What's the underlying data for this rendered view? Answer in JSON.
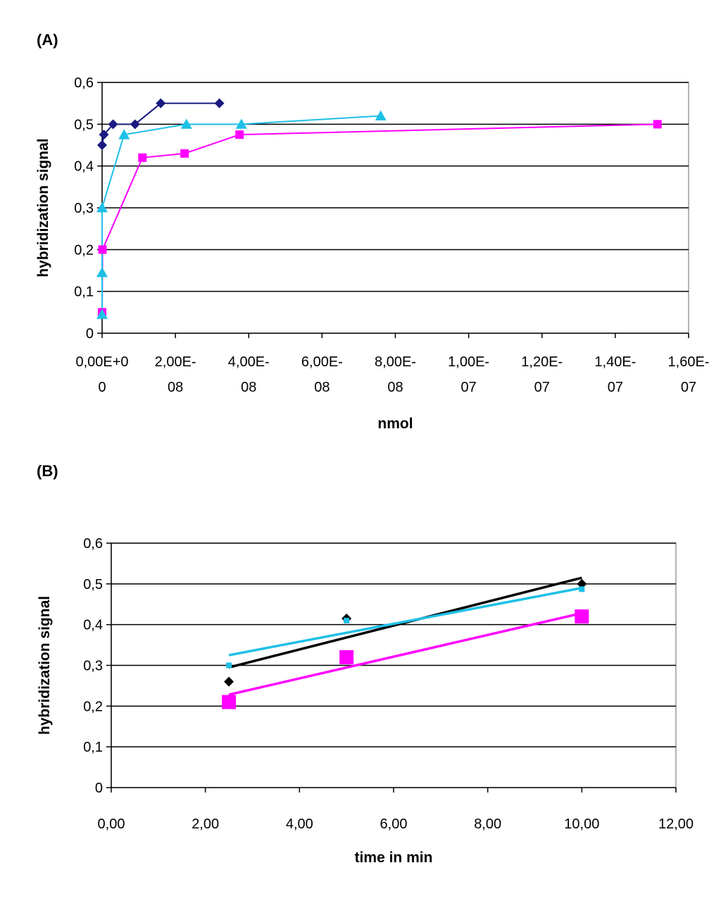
{
  "panels": {
    "a_label": "(A)",
    "b_label": "(B)"
  },
  "chart_data": [
    {
      "type": "line",
      "panel": "A",
      "xlabel": "nmol",
      "ylabel": "hybridization signal",
      "xlim": [
        0,
        1.6e-07
      ],
      "ylim": [
        0,
        0.6
      ],
      "x_tick_values": [
        0,
        2e-08,
        4e-08,
        6e-08,
        8e-08,
        1e-07,
        1.2e-07,
        1.4e-07,
        1.6e-07
      ],
      "x_tick_labels": [
        [
          "0,00E+0",
          "0"
        ],
        [
          "2,00E-",
          "08"
        ],
        [
          "4,00E-",
          "08"
        ],
        [
          "6,00E-",
          "08"
        ],
        [
          "8,00E-",
          "08"
        ],
        [
          "1,00E-",
          "07"
        ],
        [
          "1,20E-",
          "07"
        ],
        [
          "1,40E-",
          "07"
        ],
        [
          "1,60E-",
          "07"
        ]
      ],
      "y_tick_values": [
        0,
        0.1,
        0.2,
        0.3,
        0.4,
        0.5,
        0.6
      ],
      "y_tick_labels": [
        "0",
        "0,1",
        "0,2",
        "0,3",
        "0,4",
        "0,5",
        "0,6"
      ],
      "grid": "horizontal",
      "series": [
        {
          "color": "#1a1a80",
          "marker": "diamond",
          "x": [
            0,
            5e-10,
            3e-09,
            9e-09,
            1.6e-08,
            3.2e-08
          ],
          "y": [
            0.45,
            0.475,
            0.5,
            0.5,
            0.55,
            0.55
          ]
        },
        {
          "color": "#ff00ff",
          "marker": "square",
          "x": [
            0,
            1e-10,
            1.1e-08,
            2.25e-08,
            3.75e-08,
            1.515e-07
          ],
          "y": [
            0.05,
            0.2,
            0.42,
            0.43,
            0.475,
            0.5
          ]
        },
        {
          "color": "#1ec0e6",
          "marker": "triangle",
          "x": [
            0,
            0,
            0,
            6e-09,
            2.3e-08,
            3.8e-08,
            7.6e-08
          ],
          "y": [
            0.045,
            0.145,
            0.3,
            0.475,
            0.5,
            0.5,
            0.52
          ]
        }
      ]
    },
    {
      "type": "scatter",
      "panel": "B",
      "xlabel": "time in min",
      "ylabel": "hybridization signal",
      "xlim": [
        0,
        12
      ],
      "ylim": [
        0,
        0.6
      ],
      "x_tick_values": [
        0,
        2,
        4,
        6,
        8,
        10,
        12
      ],
      "x_tick_labels": [
        "0,00",
        "2,00",
        "4,00",
        "6,00",
        "8,00",
        "10,00",
        "12,00"
      ],
      "y_tick_values": [
        0,
        0.1,
        0.2,
        0.3,
        0.4,
        0.5,
        0.6
      ],
      "y_tick_labels": [
        "0",
        "0,1",
        "0,2",
        "0,3",
        "0,4",
        "0,5",
        "0,6"
      ],
      "grid": "horizontal",
      "series": [
        {
          "color": "#000000",
          "marker": "diamond",
          "x": [
            2.5,
            5,
            10
          ],
          "y": [
            0.26,
            0.415,
            0.5
          ],
          "trendline": [
            [
              2.5,
              0.295
            ],
            [
              10,
              0.515
            ]
          ]
        },
        {
          "color": "#ff00ff",
          "marker": "bigsquare",
          "x": [
            2.5,
            5,
            10
          ],
          "y": [
            0.21,
            0.32,
            0.42
          ],
          "trendline": [
            [
              2.5,
              0.228
            ],
            [
              10,
              0.428
            ]
          ]
        },
        {
          "color": "#1ec0e6",
          "marker": "smallsquare",
          "x": [
            2.5,
            5,
            10
          ],
          "y": [
            0.3,
            0.41,
            0.487
          ],
          "trendline": [
            [
              2.5,
              0.325
            ],
            [
              10,
              0.49
            ]
          ]
        }
      ]
    }
  ]
}
